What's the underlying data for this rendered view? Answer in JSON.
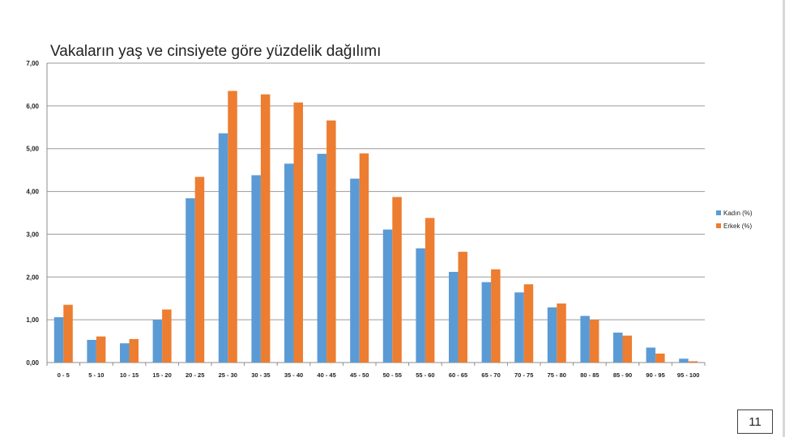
{
  "chart_data": {
    "type": "bar",
    "title": "Vakaların yaş ve cinsiyete göre yüzdelik dağılımı",
    "xlabel": "",
    "ylabel": "",
    "ylim": [
      0,
      7
    ],
    "y_ticks": [
      "0,00",
      "1,00",
      "2,00",
      "3,00",
      "4,00",
      "5,00",
      "6,00",
      "7,00"
    ],
    "grid": true,
    "legend_position": "right",
    "categories": [
      "0 - 5",
      "5 - 10",
      "10 - 15",
      "15 - 20",
      "20 - 25",
      "25 - 30",
      "30 - 35",
      "35 - 40",
      "40 - 45",
      "45 - 50",
      "50 - 55",
      "55 - 60",
      "60 - 65",
      "65 - 70",
      "70 - 75",
      "75 - 80",
      "80 - 85",
      "85 - 90",
      "90 - 95",
      "95 - 100"
    ],
    "series": [
      {
        "name": "Kadın (%)",
        "color": "#5b9bd5",
        "values": [
          1.06,
          0.53,
          0.45,
          1.0,
          3.84,
          5.36,
          4.38,
          4.65,
          4.88,
          4.3,
          3.11,
          2.67,
          2.12,
          1.88,
          1.64,
          1.29,
          1.09,
          0.7,
          0.35,
          0.09
        ]
      },
      {
        "name": "Erkek (%)",
        "color": "#ed7d31",
        "values": [
          1.35,
          0.61,
          0.55,
          1.24,
          4.34,
          6.35,
          6.27,
          6.08,
          5.66,
          4.89,
          3.87,
          3.38,
          2.59,
          2.18,
          1.83,
          1.38,
          1.0,
          0.63,
          0.21,
          0.03
        ]
      }
    ]
  },
  "page": {
    "number": "11"
  }
}
